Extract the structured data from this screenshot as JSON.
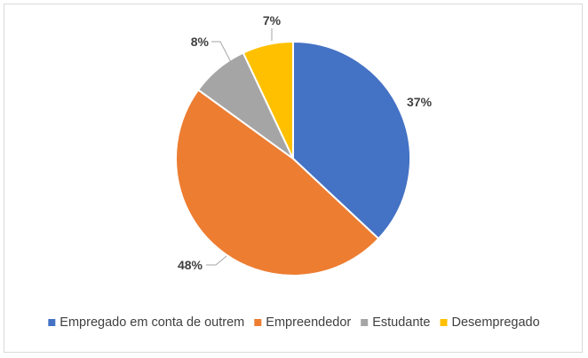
{
  "chart_data": {
    "type": "pie",
    "title": "",
    "categories": [
      "Empregado em conta de outrem",
      "Empreendedor",
      "Estudante",
      "Desempregado"
    ],
    "values": [
      37,
      48,
      8,
      7
    ],
    "data_labels": [
      "37%",
      "48%",
      "8%",
      "7%"
    ],
    "colors": [
      "#4472C4",
      "#ED7D31",
      "#A5A5A5",
      "#FFC000"
    ],
    "legend": {
      "position": "bottom",
      "entries": [
        "Empregado em conta de outrem",
        "Empreendedor",
        "Estudante",
        "Desempregado"
      ]
    },
    "start_angle_deg": 0,
    "direction": "clockwise"
  }
}
